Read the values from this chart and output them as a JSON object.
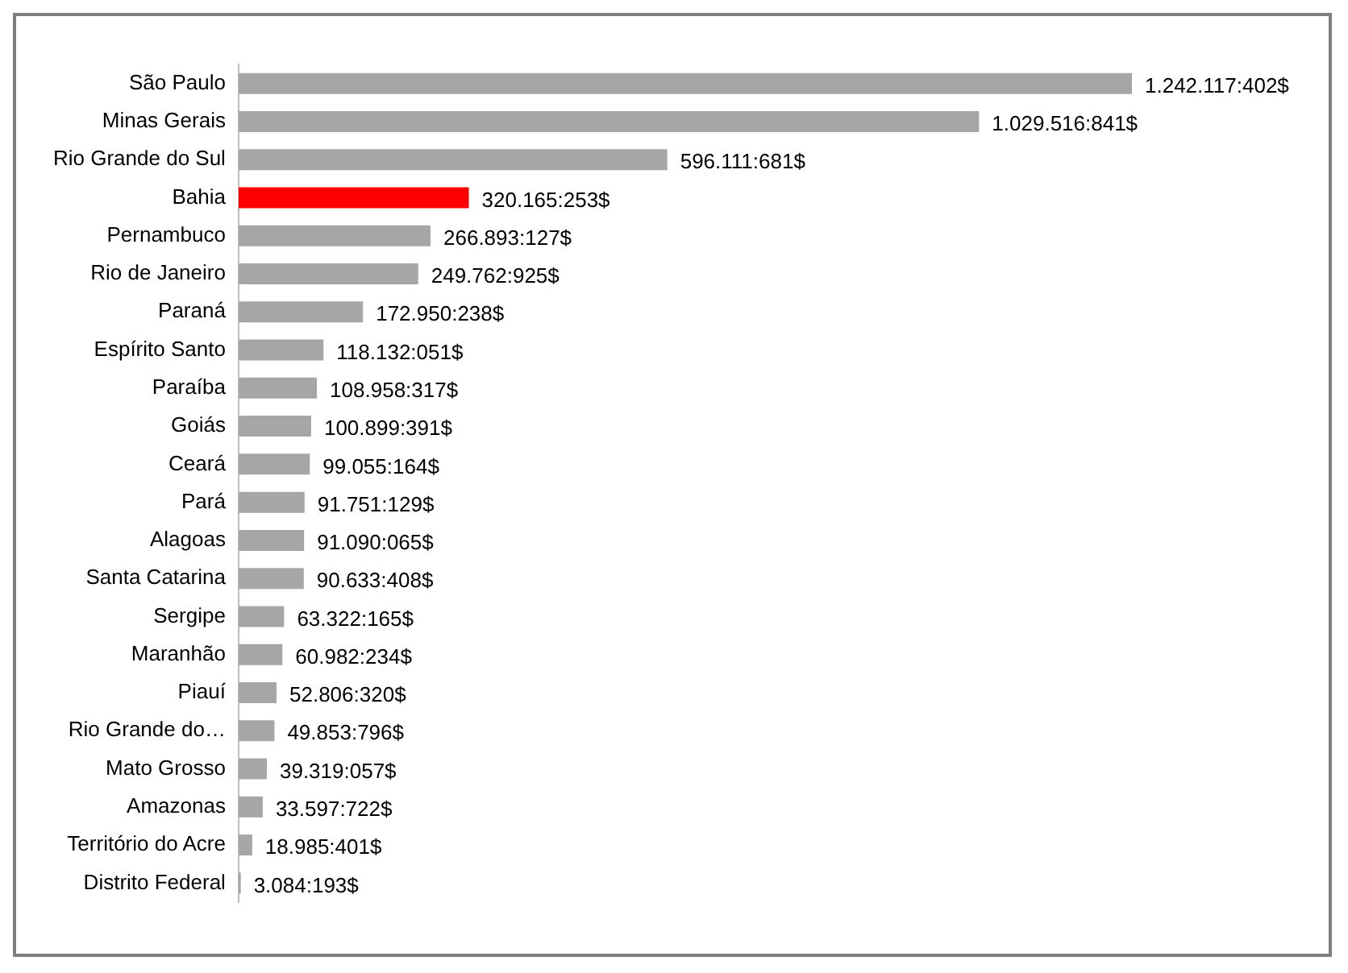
{
  "chart_data": {
    "type": "bar",
    "orientation": "horizontal",
    "categories": [
      "São Paulo",
      "Minas Gerais",
      "Rio Grande do Sul",
      "Bahia",
      "Pernambuco",
      "Rio de Janeiro",
      "Paraná",
      "Espírito Santo",
      "Paraíba",
      "Goiás",
      "Ceará",
      "Pará",
      "Alagoas",
      "Santa Catarina",
      "Sergipe",
      "Maranhão",
      "Piauí",
      "Rio Grande do…",
      "Mato Grosso",
      "Amazonas",
      "Território do Acre",
      "Distrito Federal"
    ],
    "values": [
      1242117.402,
      1029516.841,
      596111.681,
      320165.253,
      266893.127,
      249762.925,
      172950.238,
      118132.051,
      108958.317,
      100899.391,
      99055.164,
      91751.129,
      91090.065,
      90633.408,
      63322.165,
      60982.234,
      52806.32,
      49853.796,
      39319.057,
      33597.722,
      18985.401,
      3084.193
    ],
    "value_labels": [
      "1.242.117:402$",
      "1.029.516:841$",
      "596.111:681$",
      "320.165:253$",
      "266.893:127$",
      "249.762:925$",
      "172.950:238$",
      "118.132:051$",
      "108.958:317$",
      "100.899:391$",
      "99.055:164$",
      "91.751:129$",
      "91.090:065$",
      "90.633:408$",
      "63.322:165$",
      "60.982:234$",
      "52.806:320$",
      "49.853:796$",
      "39.319:057$",
      "33.597:722$",
      "18.985:401$",
      "3.084:193$"
    ],
    "colors": [
      "#a6a6a6",
      "#a6a6a6",
      "#a6a6a6",
      "#ff0000",
      "#a6a6a6",
      "#a6a6a6",
      "#a6a6a6",
      "#a6a6a6",
      "#a6a6a6",
      "#a6a6a6",
      "#a6a6a6",
      "#a6a6a6",
      "#a6a6a6",
      "#a6a6a6",
      "#a6a6a6",
      "#a6a6a6",
      "#a6a6a6",
      "#a6a6a6",
      "#a6a6a6",
      "#a6a6a6",
      "#a6a6a6",
      "#a6a6a6"
    ],
    "grid": false,
    "legend": false
  }
}
